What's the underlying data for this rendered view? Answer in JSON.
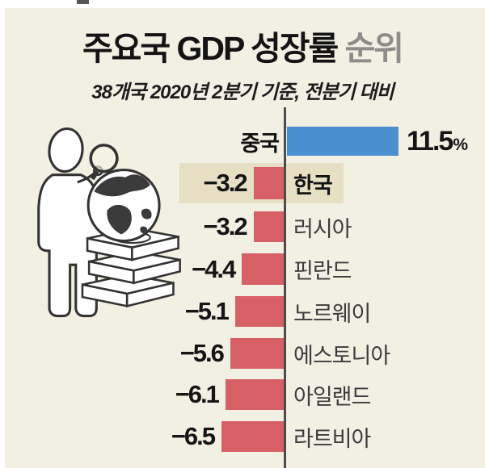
{
  "page": {
    "bg": "#ffffff",
    "panel_bg": "#f2efe3"
  },
  "header": {
    "title_main": "주요국 GDP 성장률",
    "title_suffix": "순위",
    "subtitle": "38개국 2020년 2분기 기준, 전분기 대비"
  },
  "colors": {
    "positive_bar": "#4a8fd0",
    "negative_bar": "#d75f66",
    "axis_line": "#4c4c4a",
    "highlight_box": "#e7dfc4",
    "title_suffix_gray": "#8d8d89",
    "country_label_gray": "#3c3c3c"
  },
  "illustration": {
    "icon": "person-magnifier-globe-money-illustration"
  },
  "chart_data": {
    "type": "bar",
    "orientation": "horizontal",
    "title": "주요국 GDP 성장률 순위",
    "subtitle": "38개국 2020년 2분기 기준, 전분기 대비",
    "unit": "%",
    "baseline": 0,
    "value_range": [
      -6.5,
      11.5
    ],
    "categories": [
      "중국",
      "한국",
      "러시아",
      "핀란드",
      "노르웨이",
      "에스토니아",
      "아일랜드",
      "라트비아"
    ],
    "values": [
      11.5,
      -3.2,
      -3.2,
      -4.4,
      -5.1,
      -5.6,
      -6.1,
      -6.5
    ],
    "rows": [
      {
        "country": "중국",
        "value": 11.5,
        "value_label": "11.5",
        "unit_label": "%",
        "highlight": false
      },
      {
        "country": "한국",
        "value": -3.2,
        "value_label": "−3.2",
        "highlight": true
      },
      {
        "country": "러시아",
        "value": -3.2,
        "value_label": "−3.2",
        "highlight": false
      },
      {
        "country": "핀란드",
        "value": -4.4,
        "value_label": "−4.4",
        "highlight": false
      },
      {
        "country": "노르웨이",
        "value": -5.1,
        "value_label": "−5.1",
        "highlight": false
      },
      {
        "country": "에스토니아",
        "value": -5.6,
        "value_label": "−5.6",
        "highlight": false
      },
      {
        "country": "아일랜드",
        "value": -6.1,
        "value_label": "−6.1",
        "highlight": false
      },
      {
        "country": "라트비아",
        "value": -6.5,
        "value_label": "−6.5",
        "highlight": false
      }
    ]
  }
}
